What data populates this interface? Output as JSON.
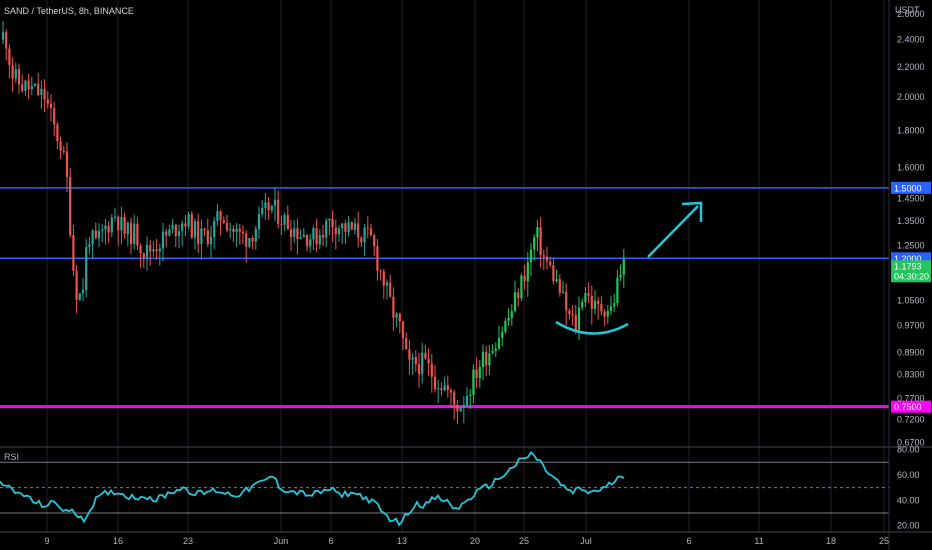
{
  "header": {
    "symbol": "SAND / TetherUS, 8h, BINANCE"
  },
  "colors": {
    "background": "#000000",
    "up": "#26a69a",
    "up_green": "#22c55e",
    "down": "#ef5350",
    "blue_line": "#2962ff",
    "magenta_line": "#ff00ff",
    "arrow": "#26c6da",
    "rsi": "#26c6da",
    "grid": "#1e222d",
    "axis_text": "#b2b5be"
  },
  "chart_data": [
    {
      "type": "candlestick",
      "title": "SAND / TetherUS, 8h, BINANCE",
      "currency": "USDT",
      "scale": "log",
      "ylim": [
        0.66,
        2.72
      ],
      "y_ticks": [
        "2.6000",
        "2.4000",
        "2.2000",
        "2.0000",
        "1.8000",
        "1.6000",
        "1.4500",
        "1.3500",
        "1.2500",
        "1.0500",
        "0.9700",
        "0.8900",
        "0.8300",
        "0.7700",
        "0.7200",
        "0.6700"
      ],
      "x_ticks": [
        "9",
        "16",
        "23",
        "Jun",
        "6",
        "13",
        "20",
        "25",
        "Jul",
        "6",
        "11",
        "18",
        "25"
      ],
      "levels": [
        {
          "label": "1.5000",
          "value": 1.5,
          "color": "#2962ff"
        },
        {
          "label": "1.2000",
          "value": 1.2,
          "color": "#2962ff"
        },
        {
          "label": "0.7500",
          "value": 0.75,
          "color": "#ff00ff"
        }
      ],
      "last_price": "1.1793",
      "countdown": "04:30:20",
      "path": [
        [
          0,
          2.4
        ],
        [
          5,
          2.45
        ],
        [
          12,
          2.15
        ],
        [
          20,
          2.08
        ],
        [
          32,
          2.05
        ],
        [
          45,
          2.0
        ],
        [
          55,
          1.8
        ],
        [
          62,
          1.7
        ],
        [
          68,
          1.5
        ],
        [
          72,
          1.2
        ],
        [
          78,
          1.05
        ],
        [
          83,
          1.1
        ],
        [
          88,
          1.3
        ],
        [
          95,
          1.25
        ],
        [
          105,
          1.32
        ],
        [
          115,
          1.38
        ],
        [
          125,
          1.3
        ],
        [
          135,
          1.3
        ],
        [
          145,
          1.22
        ],
        [
          155,
          1.25
        ],
        [
          170,
          1.3
        ],
        [
          185,
          1.36
        ],
        [
          200,
          1.28
        ],
        [
          210,
          1.3
        ],
        [
          222,
          1.38
        ],
        [
          235,
          1.3
        ],
        [
          248,
          1.28
        ],
        [
          260,
          1.35
        ],
        [
          270,
          1.42
        ],
        [
          285,
          1.35
        ],
        [
          300,
          1.3
        ],
        [
          315,
          1.28
        ],
        [
          330,
          1.35
        ],
        [
          345,
          1.32
        ],
        [
          360,
          1.3
        ],
        [
          372,
          1.27
        ],
        [
          378,
          1.18
        ],
        [
          385,
          1.1
        ],
        [
          392,
          1.02
        ],
        [
          400,
          0.96
        ],
        [
          408,
          0.85
        ],
        [
          416,
          0.86
        ],
        [
          425,
          0.86
        ],
        [
          435,
          0.82
        ],
        [
          445,
          0.8
        ],
        [
          455,
          0.75
        ],
        [
          462,
          0.76
        ],
        [
          470,
          0.8
        ],
        [
          480,
          0.86
        ],
        [
          490,
          0.9
        ],
        [
          500,
          0.95
        ],
        [
          510,
          1.0
        ],
        [
          520,
          1.1
        ],
        [
          528,
          1.18
        ],
        [
          536,
          1.3
        ],
        [
          544,
          1.2
        ],
        [
          552,
          1.15
        ],
        [
          560,
          1.08
        ],
        [
          568,
          1.0
        ],
        [
          576,
          0.97
        ],
        [
          584,
          1.1
        ],
        [
          590,
          1.05
        ],
        [
          596,
          1.02
        ],
        [
          604,
          1.03
        ],
        [
          612,
          1.02
        ],
        [
          618,
          1.12
        ],
        [
          624,
          1.18
        ]
      ]
    },
    {
      "type": "line",
      "title": "RSI",
      "ylim": [
        15,
        82
      ],
      "y_ticks": [
        "80.00",
        "60.00",
        "40.00",
        "20.00"
      ],
      "bands": [
        70,
        50,
        30
      ],
      "path": [
        [
          0,
          57
        ],
        [
          8,
          50
        ],
        [
          15,
          46
        ],
        [
          25,
          44
        ],
        [
          35,
          38
        ],
        [
          45,
          36
        ],
        [
          55,
          38
        ],
        [
          65,
          32
        ],
        [
          75,
          30
        ],
        [
          85,
          25
        ],
        [
          95,
          40
        ],
        [
          105,
          45
        ],
        [
          115,
          47
        ],
        [
          125,
          44
        ],
        [
          135,
          42
        ],
        [
          145,
          44
        ],
        [
          155,
          40
        ],
        [
          165,
          44
        ],
        [
          175,
          48
        ],
        [
          185,
          50
        ],
        [
          195,
          45
        ],
        [
          205,
          46
        ],
        [
          215,
          48
        ],
        [
          225,
          46
        ],
        [
          235,
          44
        ],
        [
          245,
          47
        ],
        [
          255,
          52
        ],
        [
          265,
          55
        ],
        [
          272,
          60
        ],
        [
          280,
          50
        ],
        [
          290,
          47
        ],
        [
          300,
          46
        ],
        [
          310,
          44
        ],
        [
          320,
          46
        ],
        [
          330,
          49
        ],
        [
          340,
          44
        ],
        [
          350,
          46
        ],
        [
          360,
          44
        ],
        [
          370,
          40
        ],
        [
          378,
          35
        ],
        [
          385,
          28
        ],
        [
          392,
          25
        ],
        [
          400,
          22
        ],
        [
          408,
          30
        ],
        [
          416,
          38
        ],
        [
          425,
          36
        ],
        [
          435,
          42
        ],
        [
          445,
          40
        ],
        [
          455,
          33
        ],
        [
          462,
          36
        ],
        [
          470,
          42
        ],
        [
          480,
          48
        ],
        [
          490,
          52
        ],
        [
          500,
          58
        ],
        [
          510,
          64
        ],
        [
          518,
          70
        ],
        [
          525,
          73
        ],
        [
          532,
          77
        ],
        [
          540,
          70
        ],
        [
          548,
          62
        ],
        [
          556,
          56
        ],
        [
          564,
          50
        ],
        [
          572,
          46
        ],
        [
          580,
          49
        ],
        [
          590,
          46
        ],
        [
          598,
          48
        ],
        [
          606,
          50
        ],
        [
          614,
          55
        ],
        [
          624,
          60
        ]
      ]
    }
  ]
}
